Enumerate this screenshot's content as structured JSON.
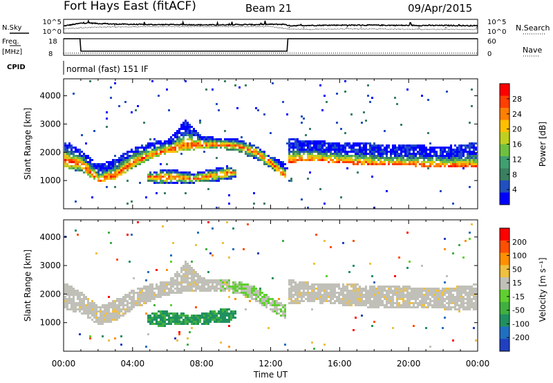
{
  "header": {
    "station": "Fort Hays East (fitACF)",
    "beam": "Beam 21",
    "date": "09/Apr/2015"
  },
  "left_labels": {
    "nsky": "N.Sky",
    "freq": "Freq.",
    "freq_unit": "[MHz]",
    "cpid": "CPID"
  },
  "right_labels": {
    "nsearch": "N.Search",
    "nave": "Nave"
  },
  "cpid_text": "normal (fast) 151 IF",
  "colors": {
    "power_scale": [
      "#0000ff",
      "#2050c0",
      "#3a8060",
      "#40a070",
      "#70c040",
      "#c0d020",
      "#ffc000",
      "#ff8000",
      "#ff4000",
      "#ff0000"
    ],
    "velocity_scale": [
      "#2040c0",
      "#2070c0",
      "#209060",
      "#40b040",
      "#60d030",
      "#c0c0b8",
      "#f0c040",
      "#ff9000",
      "#ff5000",
      "#ff0000"
    ]
  },
  "chart_data": [
    {
      "type": "line",
      "name": "noise-panel",
      "left_ticks": [
        "10^5",
        "10^0"
      ],
      "right_ticks": [
        "10^5",
        "10^0"
      ],
      "ylim": [
        0,
        5
      ],
      "xlim": [
        0,
        24
      ],
      "series": [
        {
          "name": "N.Sky",
          "x": [
            0,
            0.3,
            1,
            1.5,
            2,
            3,
            4,
            5,
            6,
            7,
            8,
            9,
            10,
            11,
            12,
            12.9,
            13,
            14,
            16,
            18,
            20,
            22,
            24
          ],
          "values": [
            2.6,
            2.9,
            3.6,
            3.7,
            3.5,
            3.3,
            3.2,
            3.1,
            3.1,
            3.1,
            3.0,
            3.0,
            3.1,
            3.1,
            3.2,
            3.2,
            2.7,
            2.8,
            2.9,
            2.9,
            2.8,
            2.8,
            2.7
          ]
        },
        {
          "name": "N.Search",
          "x": [
            0,
            2,
            4,
            6,
            8,
            10,
            12,
            13,
            14,
            16,
            18,
            20,
            22,
            24
          ],
          "values": [
            1.6,
            2.2,
            2.3,
            2.4,
            2.4,
            2.4,
            2.4,
            1.5,
            1.4,
            1.5,
            1.5,
            1.4,
            1.4,
            1.4
          ]
        }
      ]
    },
    {
      "type": "line",
      "name": "frequency-panel",
      "left_ticks": [
        "18",
        "8"
      ],
      "right_ticks": [
        "60",
        "0"
      ],
      "ylim": [
        8,
        18
      ],
      "xlim": [
        0,
        24
      ],
      "series": [
        {
          "name": "Freq.",
          "x": [
            0,
            0.95,
            1.0,
            12.95,
            13.0,
            24
          ],
          "values": [
            18,
            18,
            10.5,
            10.5,
            18,
            18
          ]
        },
        {
          "name": "Nave",
          "x": [
            0,
            24
          ],
          "values": [
            9.3,
            9.3
          ]
        }
      ]
    },
    {
      "type": "heatmap",
      "name": "power-panel",
      "ylabel": "Slant Range [km]",
      "y_ticks": [
        1000,
        2000,
        3000,
        4000
      ],
      "ylim": [
        0,
        4600
      ],
      "xlim": [
        0,
        24
      ],
      "colorbar": {
        "label": "Power [dB]",
        "ticks": [
          28,
          24,
          20,
          16,
          12,
          8,
          4
        ],
        "range": [
          0,
          32
        ]
      },
      "bands": [
        {
          "x": [
            0,
            1,
            2,
            3,
            4,
            5,
            6,
            6.5,
            7,
            8,
            9,
            10,
            11,
            12,
            12.9
          ],
          "lower": [
            1500,
            1350,
            950,
            1100,
            1500,
            1800,
            2000,
            2050,
            2100,
            2150,
            2150,
            2050,
            1800,
            1450,
            1100
          ],
          "upper": [
            2450,
            2100,
            1600,
            1850,
            2200,
            2400,
            2500,
            2800,
            3200,
            2600,
            2550,
            2500,
            2300,
            1900,
            1650
          ],
          "core": [
            1750,
            1600,
            1050,
            1250,
            1700,
            1950,
            2100,
            2200,
            2300,
            2300,
            2300,
            2250,
            2050,
            1650,
            1150
          ]
        },
        {
          "x": [
            13,
            14,
            16,
            18,
            20,
            22,
            24
          ],
          "lower": [
            1650,
            1750,
            1650,
            1550,
            1550,
            1500,
            1500
          ],
          "upper": [
            2550,
            2450,
            2400,
            2350,
            2300,
            2250,
            2400
          ],
          "core": [
            1700,
            1800,
            1700,
            1600,
            1600,
            1550,
            1550
          ]
        },
        {
          "x": [
            4.8,
            5.5,
            6.5,
            7.5,
            8.5,
            9.5,
            10
          ],
          "lower": [
            1000,
            900,
            950,
            950,
            1000,
            1050,
            1200
          ],
          "upper": [
            1300,
            1450,
            1400,
            1300,
            1450,
            1550,
            1400
          ],
          "core": [
            1150,
            1150,
            1150,
            1100,
            1200,
            1300,
            1300
          ]
        }
      ]
    },
    {
      "type": "heatmap",
      "name": "velocity-panel",
      "ylabel": "Slant Range [km]",
      "xlabel": "Time UT",
      "x_ticks": [
        "00:00",
        "04:00",
        "08:00",
        "12:00",
        "16:00",
        "20:00",
        "00:00"
      ],
      "y_ticks": [
        1000,
        2000,
        3000,
        4000
      ],
      "ylim": [
        0,
        4600
      ],
      "xlim": [
        0,
        24
      ],
      "colorbar": {
        "label": "Velocity [m s⁻¹]",
        "ticks": [
          "200",
          "100",
          "50",
          "15",
          "-15",
          "-50",
          "-100",
          "-200"
        ],
        "range": [
          -250,
          250
        ]
      }
    }
  ]
}
